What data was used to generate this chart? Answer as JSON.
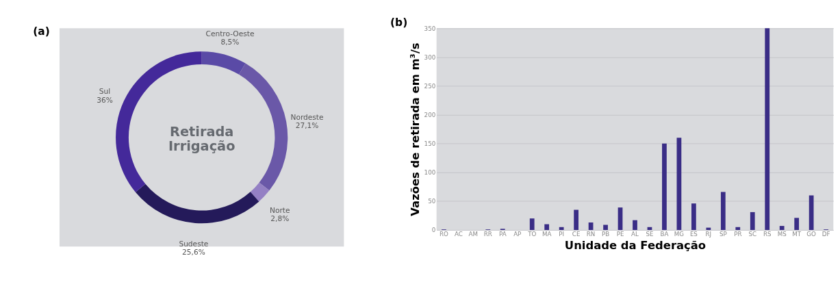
{
  "chart_data": [
    {
      "type": "donut",
      "title": "Retirada Irrigação",
      "annotations": [
        "(a)"
      ],
      "categories": [
        "Centro-Oeste",
        "Nordeste",
        "Norte",
        "Sudeste",
        "Sul"
      ],
      "values": [
        8.5,
        27.1,
        2.8,
        25.6,
        36
      ],
      "value_labels": [
        "8,5%",
        "27,1%",
        "2,8%",
        "25,6%",
        "36%"
      ],
      "colors": [
        "#5a4aa6",
        "#6a58a8",
        "#9480c4",
        "#241a5a",
        "#44299a"
      ]
    },
    {
      "type": "bar",
      "annotations": [
        "(b)"
      ],
      "categories": [
        "RO",
        "AC",
        "AM",
        "RR",
        "PA",
        "AP",
        "TO",
        "MA",
        "PI",
        "CE",
        "RN",
        "PB",
        "PE",
        "AL",
        "SE",
        "BA",
        "MG",
        "ES",
        "RJ",
        "SP",
        "PR",
        "SC",
        "RS",
        "MS",
        "MT",
        "GO",
        "DF"
      ],
      "series": [
        {
          "color": "#3a2d86",
          "values": [
            1,
            0,
            0,
            1,
            2,
            0,
            20,
            10,
            5,
            35,
            13,
            9,
            39,
            17,
            5,
            150,
            160,
            46,
            4,
            66,
            5,
            31,
            350,
            7,
            21,
            60,
            1
          ]
        }
      ],
      "xlabel": "Unidade da Federação",
      "ylabel": "Vazões de retirada em m³/s",
      "ylim": [
        0,
        350
      ],
      "yticks": [
        0,
        50,
        100,
        150,
        200,
        250,
        300,
        350
      ],
      "grid": "y"
    }
  ]
}
